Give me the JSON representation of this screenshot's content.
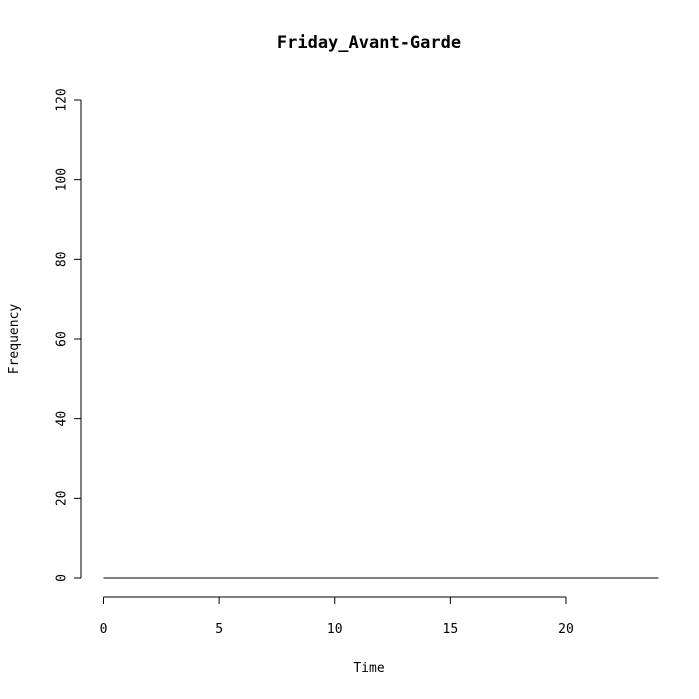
{
  "chart_data": {
    "type": "line",
    "title": "Friday_Avant-Garde",
    "xlabel": "Time",
    "ylabel": "Frequency",
    "xlim": [
      0,
      24
    ],
    "ylim": [
      0,
      120
    ],
    "x_ticks": [
      0,
      5,
      10,
      15,
      20
    ],
    "y_ticks": [
      0,
      20,
      40,
      60,
      80,
      100,
      120
    ],
    "grid": false,
    "series": [
      {
        "x": [
          0,
          1,
          2,
          3,
          4,
          5,
          6,
          7,
          8,
          9,
          10,
          11,
          12,
          13,
          14,
          15,
          16,
          17,
          18,
          19,
          20,
          21,
          22,
          23,
          24
        ],
        "values": [
          0,
          0,
          0,
          0,
          0,
          0,
          0,
          0,
          0,
          0,
          0,
          0,
          0,
          0,
          0,
          0,
          0,
          0,
          0,
          0,
          0,
          0,
          0,
          0,
          0
        ]
      }
    ]
  }
}
